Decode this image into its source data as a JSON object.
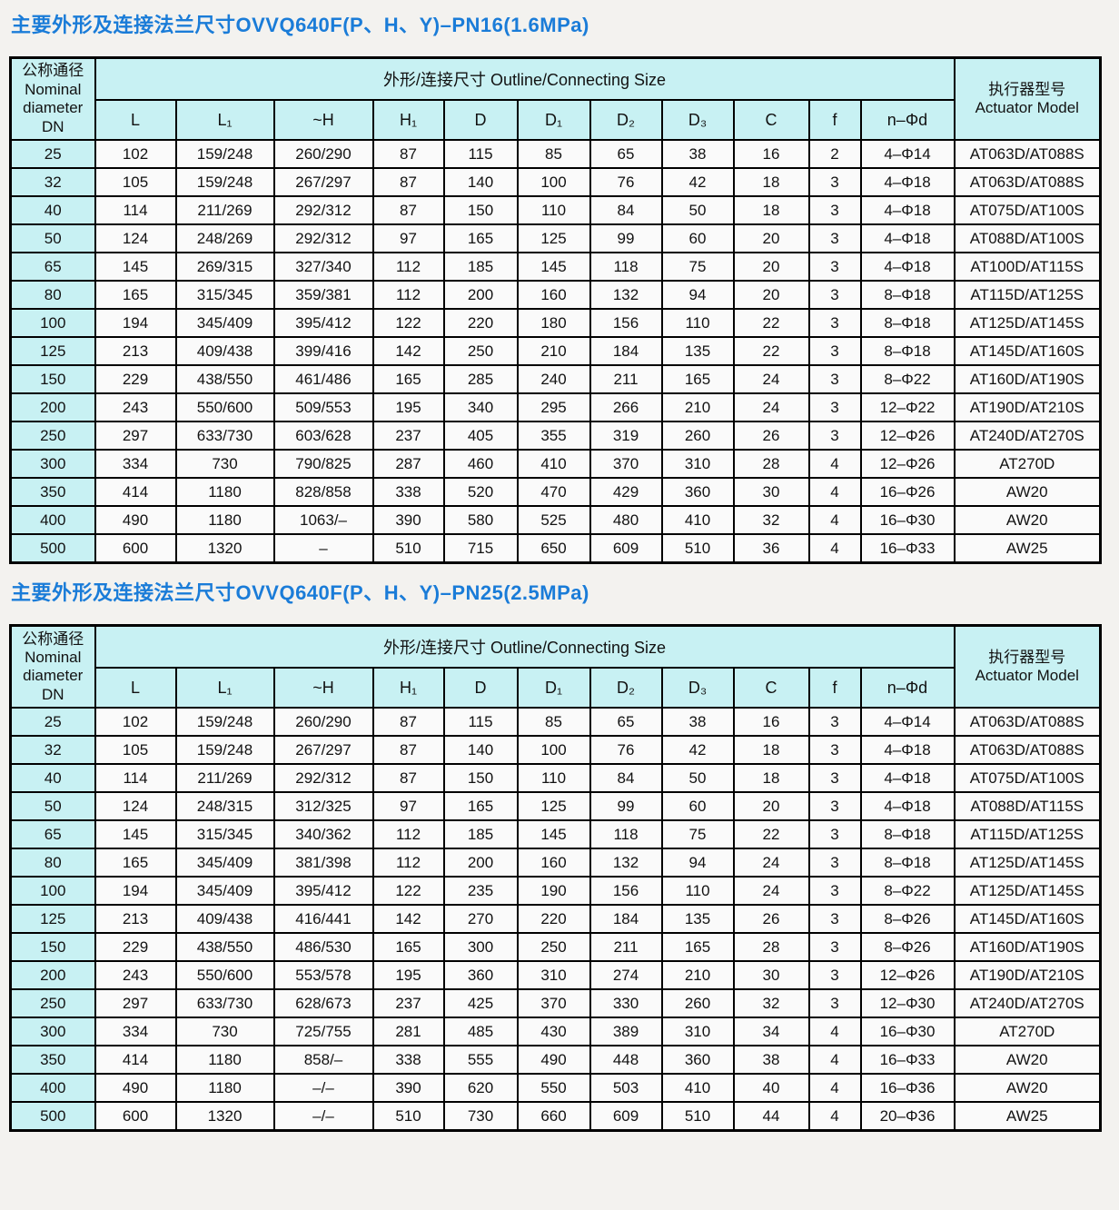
{
  "page": {
    "accent_blue": "#1a7cd8",
    "header_bg": "#c8f1f3",
    "cell_bg": "#fafafa"
  },
  "tables": [
    {
      "title": "主要外形及连接法兰尺寸OVVQ640F(P、H、Y)–PN16(1.6MPa)",
      "header": {
        "dn_label": "公称通径\nNominal\ndiameter\nDN",
        "group_label": "外形/连接尺寸 Outline/Connecting Size",
        "columns": [
          "L",
          "L₁",
          "~H",
          "H₁",
          "D",
          "D₁",
          "D₂",
          "D₃",
          "C",
          "f",
          "n–Φd"
        ],
        "actuator_label": "执行器型号\nActuator Model"
      },
      "rows": [
        [
          "25",
          "102",
          "159/248",
          "260/290",
          "87",
          "115",
          "85",
          "65",
          "38",
          "16",
          "2",
          "4–Φ14",
          "AT063D/AT088S"
        ],
        [
          "32",
          "105",
          "159/248",
          "267/297",
          "87",
          "140",
          "100",
          "76",
          "42",
          "18",
          "3",
          "4–Φ18",
          "AT063D/AT088S"
        ],
        [
          "40",
          "114",
          "211/269",
          "292/312",
          "87",
          "150",
          "110",
          "84",
          "50",
          "18",
          "3",
          "4–Φ18",
          "AT075D/AT100S"
        ],
        [
          "50",
          "124",
          "248/269",
          "292/312",
          "97",
          "165",
          "125",
          "99",
          "60",
          "20",
          "3",
          "4–Φ18",
          "AT088D/AT100S"
        ],
        [
          "65",
          "145",
          "269/315",
          "327/340",
          "112",
          "185",
          "145",
          "118",
          "75",
          "20",
          "3",
          "4–Φ18",
          "AT100D/AT115S"
        ],
        [
          "80",
          "165",
          "315/345",
          "359/381",
          "112",
          "200",
          "160",
          "132",
          "94",
          "20",
          "3",
          "8–Φ18",
          "AT115D/AT125S"
        ],
        [
          "100",
          "194",
          "345/409",
          "395/412",
          "122",
          "220",
          "180",
          "156",
          "110",
          "22",
          "3",
          "8–Φ18",
          "AT125D/AT145S"
        ],
        [
          "125",
          "213",
          "409/438",
          "399/416",
          "142",
          "250",
          "210",
          "184",
          "135",
          "22",
          "3",
          "8–Φ18",
          "AT145D/AT160S"
        ],
        [
          "150",
          "229",
          "438/550",
          "461/486",
          "165",
          "285",
          "240",
          "211",
          "165",
          "24",
          "3",
          "8–Φ22",
          "AT160D/AT190S"
        ],
        [
          "200",
          "243",
          "550/600",
          "509/553",
          "195",
          "340",
          "295",
          "266",
          "210",
          "24",
          "3",
          "12–Φ22",
          "AT190D/AT210S"
        ],
        [
          "250",
          "297",
          "633/730",
          "603/628",
          "237",
          "405",
          "355",
          "319",
          "260",
          "26",
          "3",
          "12–Φ26",
          "AT240D/AT270S"
        ],
        [
          "300",
          "334",
          "730",
          "790/825",
          "287",
          "460",
          "410",
          "370",
          "310",
          "28",
          "4",
          "12–Φ26",
          "AT270D"
        ],
        [
          "350",
          "414",
          "1180",
          "828/858",
          "338",
          "520",
          "470",
          "429",
          "360",
          "30",
          "4",
          "16–Φ26",
          "AW20"
        ],
        [
          "400",
          "490",
          "1180",
          "1063/–",
          "390",
          "580",
          "525",
          "480",
          "410",
          "32",
          "4",
          "16–Φ30",
          "AW20"
        ],
        [
          "500",
          "600",
          "1320",
          "–",
          "510",
          "715",
          "650",
          "609",
          "510",
          "36",
          "4",
          "16–Φ33",
          "AW25"
        ]
      ]
    },
    {
      "title": "主要外形及连接法兰尺寸OVVQ640F(P、H、Y)–PN25(2.5MPa)",
      "header": {
        "dn_label": "公称通径\nNominal\ndiameter\nDN",
        "group_label": "外形/连接尺寸 Outline/Connecting Size",
        "columns": [
          "L",
          "L₁",
          "~H",
          "H₁",
          "D",
          "D₁",
          "D₂",
          "D₃",
          "C",
          "f",
          "n–Φd"
        ],
        "actuator_label": "执行器型号\nActuator Model"
      },
      "rows": [
        [
          "25",
          "102",
          "159/248",
          "260/290",
          "87",
          "115",
          "85",
          "65",
          "38",
          "16",
          "3",
          "4–Φ14",
          "AT063D/AT088S"
        ],
        [
          "32",
          "105",
          "159/248",
          "267/297",
          "87",
          "140",
          "100",
          "76",
          "42",
          "18",
          "3",
          "4–Φ18",
          "AT063D/AT088S"
        ],
        [
          "40",
          "114",
          "211/269",
          "292/312",
          "87",
          "150",
          "110",
          "84",
          "50",
          "18",
          "3",
          "4–Φ18",
          "AT075D/AT100S"
        ],
        [
          "50",
          "124",
          "248/315",
          "312/325",
          "97",
          "165",
          "125",
          "99",
          "60",
          "20",
          "3",
          "4–Φ18",
          "AT088D/AT115S"
        ],
        [
          "65",
          "145",
          "315/345",
          "340/362",
          "112",
          "185",
          "145",
          "118",
          "75",
          "22",
          "3",
          "8–Φ18",
          "AT115D/AT125S"
        ],
        [
          "80",
          "165",
          "345/409",
          "381/398",
          "112",
          "200",
          "160",
          "132",
          "94",
          "24",
          "3",
          "8–Φ18",
          "AT125D/AT145S"
        ],
        [
          "100",
          "194",
          "345/409",
          "395/412",
          "122",
          "235",
          "190",
          "156",
          "110",
          "24",
          "3",
          "8–Φ22",
          "AT125D/AT145S"
        ],
        [
          "125",
          "213",
          "409/438",
          "416/441",
          "142",
          "270",
          "220",
          "184",
          "135",
          "26",
          "3",
          "8–Φ26",
          "AT145D/AT160S"
        ],
        [
          "150",
          "229",
          "438/550",
          "486/530",
          "165",
          "300",
          "250",
          "211",
          "165",
          "28",
          "3",
          "8–Φ26",
          "AT160D/AT190S"
        ],
        [
          "200",
          "243",
          "550/600",
          "553/578",
          "195",
          "360",
          "310",
          "274",
          "210",
          "30",
          "3",
          "12–Φ26",
          "AT190D/AT210S"
        ],
        [
          "250",
          "297",
          "633/730",
          "628/673",
          "237",
          "425",
          "370",
          "330",
          "260",
          "32",
          "3",
          "12–Φ30",
          "AT240D/AT270S"
        ],
        [
          "300",
          "334",
          "730",
          "725/755",
          "281",
          "485",
          "430",
          "389",
          "310",
          "34",
          "4",
          "16–Φ30",
          "AT270D"
        ],
        [
          "350",
          "414",
          "1180",
          "858/–",
          "338",
          "555",
          "490",
          "448",
          "360",
          "38",
          "4",
          "16–Φ33",
          "AW20"
        ],
        [
          "400",
          "490",
          "1180",
          "–/–",
          "390",
          "620",
          "550",
          "503",
          "410",
          "40",
          "4",
          "16–Φ36",
          "AW20"
        ],
        [
          "500",
          "600",
          "1320",
          "–/–",
          "510",
          "730",
          "660",
          "609",
          "510",
          "44",
          "4",
          "20–Φ36",
          "AW25"
        ]
      ]
    }
  ]
}
